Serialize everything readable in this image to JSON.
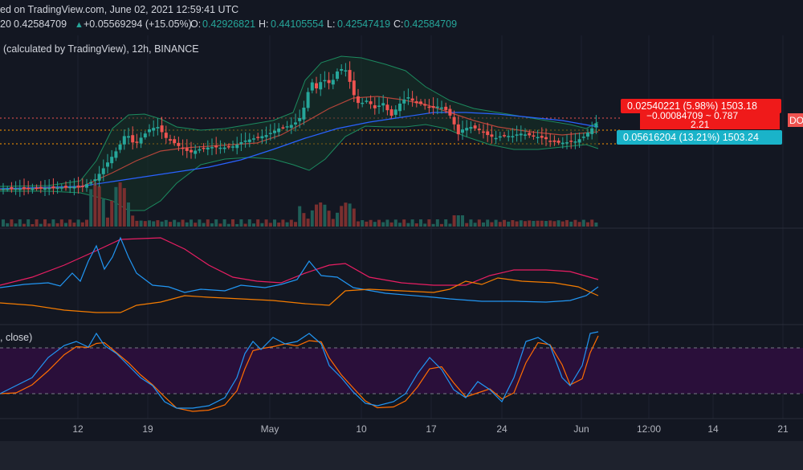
{
  "header": {
    "published": "ed on TradingView.com, June 02, 2021 12:59:41 UTC",
    "ohlc_prefix": "20",
    "last_price": "0.42584709",
    "change": "+0.05569294 (+15.05%)",
    "o_label": "O:",
    "o_value": "0.42926821",
    "h_label": "H:",
    "h_value": "0.44105554",
    "l_label": "L:",
    "l_value": "0.42547419",
    "c_label": "C:",
    "c_value": "0.42584709"
  },
  "symbol_line": "(calculated by TradingView), 12h, BINANCE",
  "stoch_label": ", close)",
  "price_tags": {
    "upper": "0.02540221 (5.98%) 1503.18",
    "middle_line1": "−0.00084709 ~ 0.787",
    "middle_line2": "2.21",
    "lower": "0.05616204 (13.21%) 1503.24",
    "right_tag": "DO"
  },
  "x_axis": [
    "12",
    "19",
    "May",
    "10",
    "17",
    "24",
    "Jun",
    "12:00",
    "14",
    "21"
  ],
  "colors": {
    "background": "#131722",
    "up": "#26a69a",
    "down": "#ef5350",
    "ma_blue": "#2962ff",
    "ma_red": "#b4453a",
    "band": "#1c8a5f",
    "rsi_pink": "#e91e63",
    "rsi_orange": "#f57c00",
    "stoch_blue": "#2196f3",
    "stoch_orange": "#ff6d00",
    "stoch_fill": "#2a0f3a",
    "tag_red": "#ef1a1a",
    "tag_cyan": "#1ab3c9"
  },
  "chart_data": {
    "type": "candlestick",
    "title": "(calculated by TradingView), 12h, BINANCE",
    "ohlc": {
      "open": 0.42926821,
      "high": 0.44105554,
      "low": 0.42547419,
      "close": 0.42584709
    },
    "x_ticks": [
      "12",
      "19",
      "May",
      "10",
      "17",
      "24",
      "Jun",
      "12:00",
      "14",
      "21"
    ],
    "indicators": [
      "Bollinger Bands",
      "Moving Averages",
      "Volume",
      "Directional Movement",
      "Stochastic RSI"
    ]
  }
}
